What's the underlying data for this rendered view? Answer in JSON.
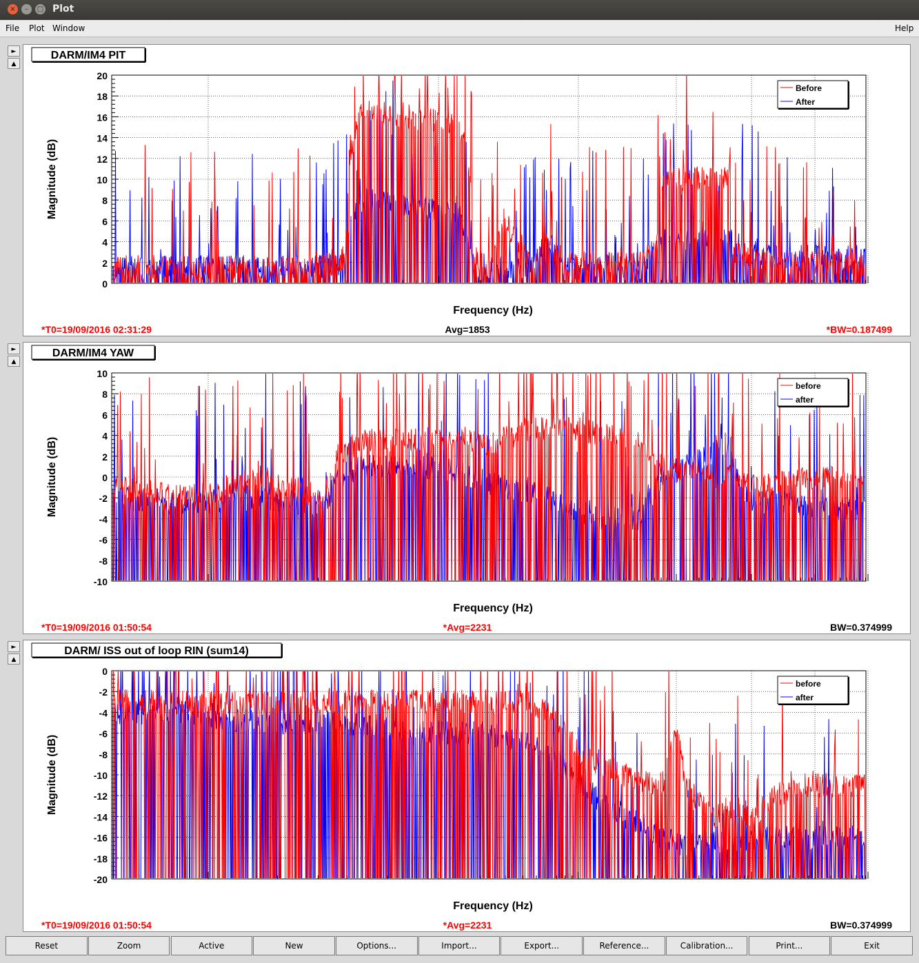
{
  "window": {
    "title": "Plot"
  },
  "menu": {
    "file": "File",
    "plot": "Plot",
    "window": "Window",
    "help": "Help"
  },
  "colors": {
    "before": "#ff0000",
    "after": "#0000ff",
    "axis": "#000000"
  },
  "panels": [
    {
      "title": "DARM/IM4 PIT",
      "t0": "*T0=19/09/2016 02:31:29",
      "avg": "Avg=1853",
      "bw": "*BW=0.187499",
      "avg_red": false,
      "bw_red": true,
      "legend": [
        "Before",
        "After"
      ]
    },
    {
      "title": "DARM/IM4 YAW",
      "t0": "*T0=19/09/2016 01:50:54",
      "avg": "*Avg=2231",
      "bw": "BW=0.374999",
      "avg_red": true,
      "bw_red": false,
      "legend": [
        "before",
        "after"
      ]
    },
    {
      "title": "DARM/ ISS out of loop RIN (sum14)",
      "t0": "*T0=19/09/2016 01:50:54",
      "avg": "*Avg=2231",
      "bw": "BW=0.374999",
      "avg_red": true,
      "bw_red": false,
      "legend": [
        "before",
        "after"
      ]
    }
  ],
  "buttons": [
    "Reset",
    "Zoom",
    "Active",
    "New",
    "Options...",
    "Import...",
    "Export...",
    "Reference...",
    "Calibration...",
    "Print...",
    "Exit"
  ],
  "chart_data": [
    {
      "type": "line",
      "title": "DARM/IM4 PIT",
      "xlabel": "Frequency (Hz)",
      "ylabel": "Magnitude (dB)",
      "ylim": [
        0,
        20
      ],
      "yticks": [
        0,
        2,
        4,
        6,
        8,
        10,
        12,
        14,
        16,
        18,
        20
      ],
      "grid": true,
      "legend_position": "top-right",
      "series": [
        {
          "name": "Before",
          "color": "#ff0000",
          "envelope": [
            [
              0.0,
              1.5
            ],
            [
              0.05,
              1.5
            ],
            [
              0.1,
              1.5
            ],
            [
              0.2,
              1.5
            ],
            [
              0.28,
              1.5
            ],
            [
              0.31,
              2.5
            ],
            [
              0.315,
              12
            ],
            [
              0.33,
              16.5
            ],
            [
              0.4,
              16
            ],
            [
              0.46,
              15
            ],
            [
              0.47,
              14
            ],
            [
              0.475,
              10
            ],
            [
              0.48,
              2
            ],
            [
              0.5,
              1.5
            ],
            [
              0.52,
              6
            ],
            [
              0.56,
              2
            ],
            [
              0.58,
              4
            ],
            [
              0.6,
              2
            ],
            [
              0.65,
              2
            ],
            [
              0.7,
              2
            ],
            [
              0.72,
              3
            ],
            [
              0.73,
              10
            ],
            [
              0.78,
              10
            ],
            [
              0.82,
              10
            ],
            [
              0.82,
              3
            ],
            [
              0.88,
              2
            ],
            [
              1.0,
              2
            ]
          ]
        },
        {
          "name": "After",
          "color": "#0000ff",
          "envelope": [
            [
              0.0,
              1.5
            ],
            [
              0.1,
              1.5
            ],
            [
              0.2,
              1.5
            ],
            [
              0.28,
              1.5
            ],
            [
              0.31,
              2
            ],
            [
              0.315,
              6
            ],
            [
              0.33,
              8
            ],
            [
              0.4,
              7.5
            ],
            [
              0.46,
              6.5
            ],
            [
              0.475,
              4
            ],
            [
              0.48,
              1.5
            ],
            [
              0.55,
              1.5
            ],
            [
              0.58,
              4
            ],
            [
              0.6,
              1.5
            ],
            [
              0.7,
              1.5
            ],
            [
              0.73,
              4
            ],
            [
              0.78,
              4
            ],
            [
              0.82,
              4
            ],
            [
              0.88,
              2.5
            ],
            [
              1.0,
              2.5
            ]
          ]
        }
      ]
    },
    {
      "type": "line",
      "title": "DARM/IM4 YAW",
      "xlabel": "Frequency (Hz)",
      "ylabel": "Magnitude (dB)",
      "ylim": [
        -10,
        10
      ],
      "yticks": [
        -10,
        -8,
        -6,
        -4,
        -2,
        0,
        2,
        4,
        6,
        8,
        10
      ],
      "grid": true,
      "legend_position": "top-right",
      "series": [
        {
          "name": "before",
          "color": "#ff0000",
          "envelope": [
            [
              0.0,
              -1
            ],
            [
              0.1,
              -2
            ],
            [
              0.2,
              0
            ],
            [
              0.28,
              -2
            ],
            [
              0.3,
              2
            ],
            [
              0.33,
              3.5
            ],
            [
              0.4,
              3.5
            ],
            [
              0.46,
              3.5
            ],
            [
              0.5,
              3
            ],
            [
              0.55,
              4.5
            ],
            [
              0.6,
              5
            ],
            [
              0.65,
              4
            ],
            [
              0.7,
              3.5
            ],
            [
              0.73,
              1
            ],
            [
              0.8,
              0
            ],
            [
              0.84,
              0
            ],
            [
              0.85,
              -1
            ],
            [
              0.92,
              0
            ],
            [
              1.0,
              0
            ]
          ]
        },
        {
          "name": "after",
          "color": "#0000ff",
          "envelope": [
            [
              0.0,
              -2
            ],
            [
              0.1,
              -2.5
            ],
            [
              0.2,
              -2
            ],
            [
              0.28,
              -3
            ],
            [
              0.3,
              0
            ],
            [
              0.33,
              1
            ],
            [
              0.4,
              1
            ],
            [
              0.46,
              0.5
            ],
            [
              0.48,
              0
            ],
            [
              0.52,
              -1
            ],
            [
              0.58,
              -2
            ],
            [
              0.6,
              -3
            ],
            [
              0.65,
              -4
            ],
            [
              0.7,
              -4
            ],
            [
              0.73,
              0
            ],
            [
              0.82,
              3
            ],
            [
              0.84,
              -2
            ],
            [
              0.92,
              -3
            ],
            [
              1.0,
              -3
            ]
          ]
        }
      ]
    },
    {
      "type": "line",
      "title": "DARM/ ISS out of loop RIN (sum14)",
      "xlabel": "Frequency (Hz)",
      "ylabel": "Magnitude (dB)",
      "ylim": [
        -20,
        0
      ],
      "yticks": [
        -20,
        -18,
        -16,
        -14,
        -12,
        -10,
        -8,
        -6,
        -4,
        -2,
        0
      ],
      "grid": true,
      "legend_position": "top-right",
      "series": [
        {
          "name": "before",
          "color": "#ff0000",
          "envelope": [
            [
              0.0,
              -3
            ],
            [
              0.1,
              -3
            ],
            [
              0.2,
              -3
            ],
            [
              0.3,
              -3
            ],
            [
              0.4,
              -3
            ],
            [
              0.5,
              -3
            ],
            [
              0.55,
              -3
            ],
            [
              0.6,
              -5
            ],
            [
              0.62,
              -8
            ],
            [
              0.68,
              -10
            ],
            [
              0.73,
              -11
            ],
            [
              0.75,
              -5
            ],
            [
              0.76,
              -11
            ],
            [
              0.8,
              -14
            ],
            [
              0.82,
              -13
            ],
            [
              0.85,
              -14
            ],
            [
              0.88,
              -12
            ],
            [
              0.92,
              -11
            ],
            [
              1.0,
              -11
            ]
          ]
        },
        {
          "name": "after",
          "color": "#0000ff",
          "envelope": [
            [
              0.0,
              -4
            ],
            [
              0.1,
              -4
            ],
            [
              0.2,
              -5
            ],
            [
              0.3,
              -5
            ],
            [
              0.4,
              -6
            ],
            [
              0.5,
              -6
            ],
            [
              0.55,
              -7
            ],
            [
              0.6,
              -9
            ],
            [
              0.62,
              -11
            ],
            [
              0.68,
              -14
            ],
            [
              0.73,
              -16
            ],
            [
              0.76,
              -17
            ],
            [
              0.8,
              -16
            ],
            [
              0.82,
              -17
            ],
            [
              0.85,
              -16
            ],
            [
              0.88,
              -16
            ],
            [
              0.92,
              -16
            ],
            [
              1.0,
              -16
            ]
          ]
        }
      ]
    }
  ]
}
